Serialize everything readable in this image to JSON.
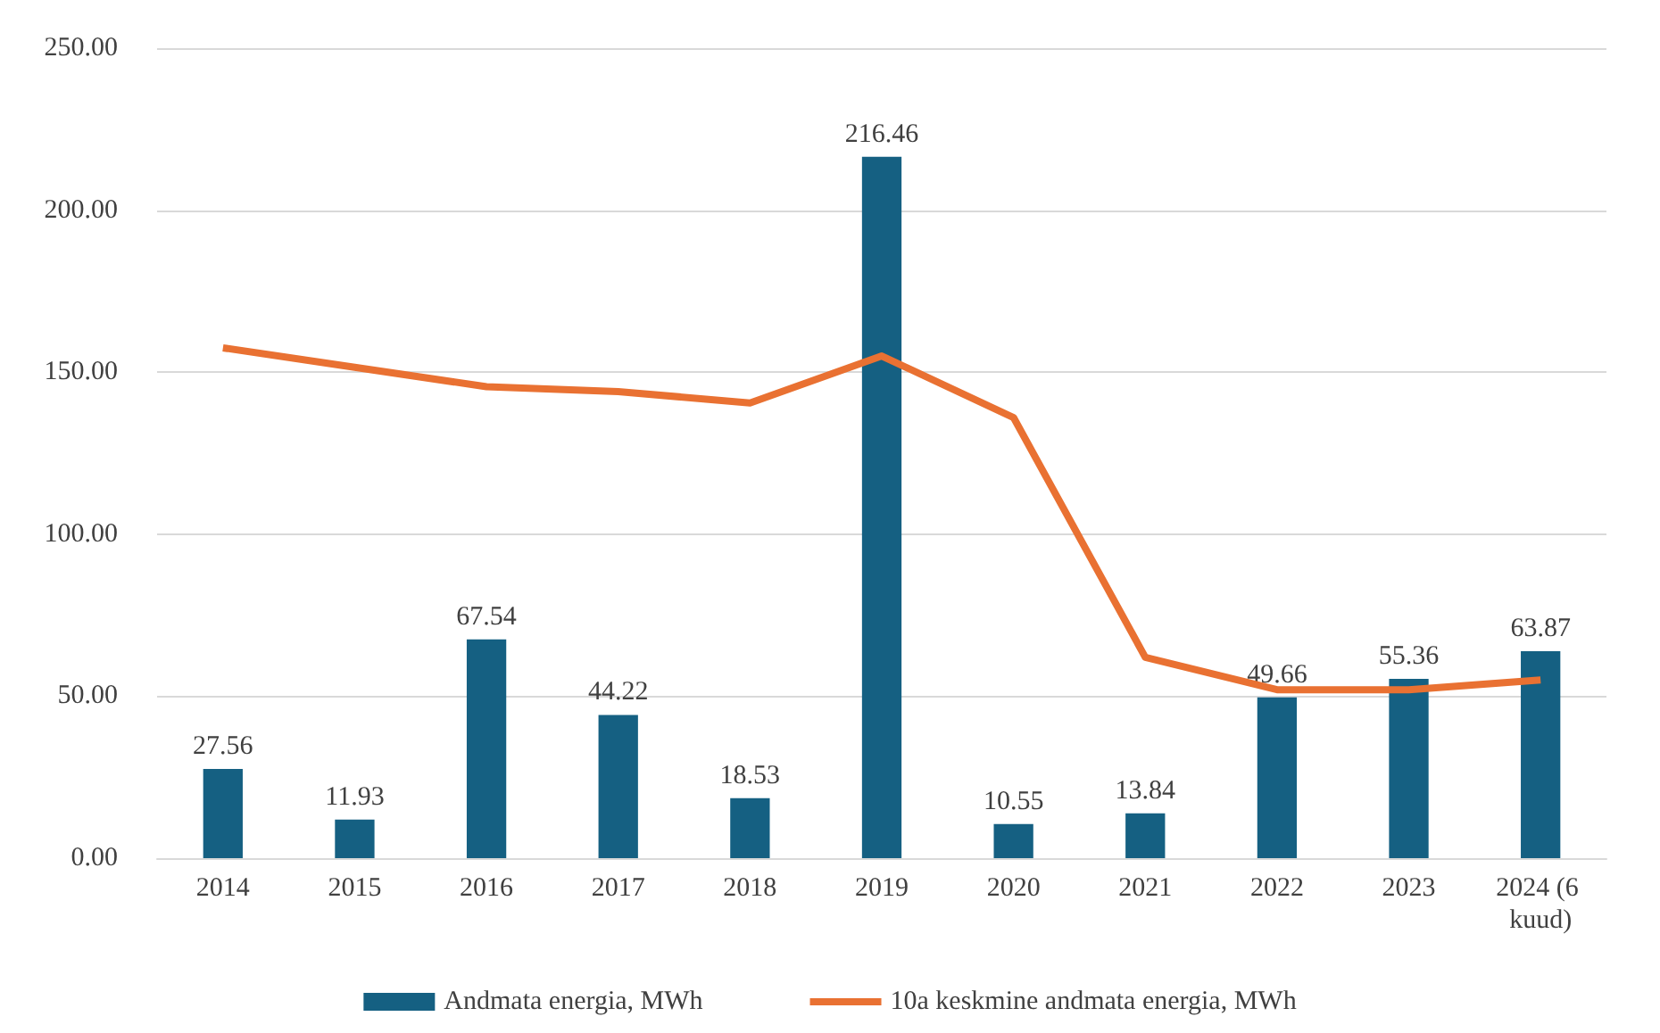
{
  "chart_data": {
    "type": "bar",
    "categories": [
      "2014",
      "2015",
      "2016",
      "2017",
      "2018",
      "2019",
      "2020",
      "2021",
      "2022",
      "2023",
      "2024 (6 kuud)"
    ],
    "series": [
      {
        "name": "Andmata energia, MWh",
        "color": "#156082",
        "values": [
          27.56,
          11.93,
          67.54,
          44.22,
          18.53,
          216.46,
          10.55,
          13.84,
          49.66,
          55.36,
          63.87
        ],
        "data_labels": true
      },
      {
        "name": "10a keskmine andmata energia, MWh",
        "type": "line",
        "color": "#e97132",
        "values": [
          157.5,
          151.5,
          145.5,
          144,
          140.5,
          155,
          136,
          62,
          52,
          52,
          55
        ]
      }
    ],
    "ylim": [
      0,
      250
    ],
    "yticks": [
      {
        "value": 0,
        "label": "0.00"
      },
      {
        "value": 50,
        "label": "50.00"
      },
      {
        "value": 100,
        "label": "100.00"
      },
      {
        "value": 150,
        "label": "150.00"
      },
      {
        "value": 200,
        "label": "200.00"
      },
      {
        "value": 250,
        "label": "250.00"
      }
    ],
    "grid": "y",
    "legend": "bottom",
    "marker": "none"
  }
}
